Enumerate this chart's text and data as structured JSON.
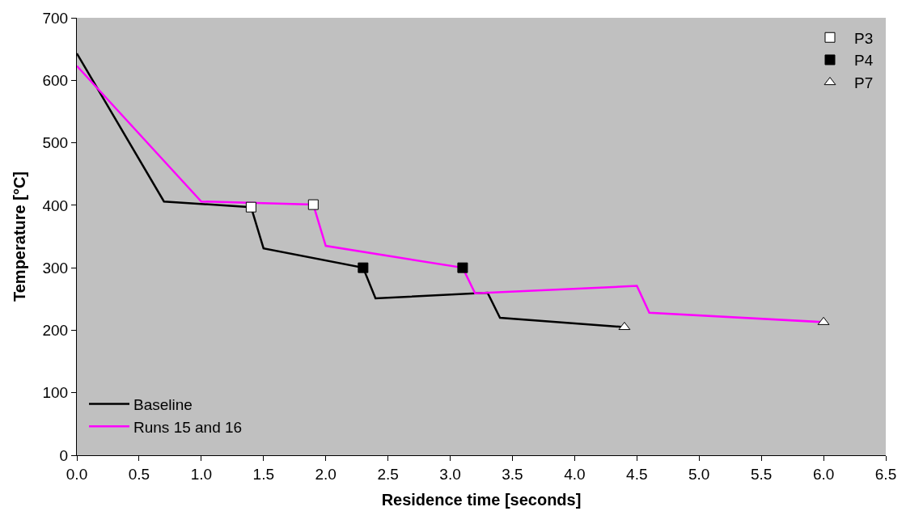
{
  "chart_data": {
    "type": "line",
    "xlabel": "Residence time [seconds]",
    "ylabel": "Temperature [°C]",
    "xlim": [
      0,
      6.5
    ],
    "xticks": [
      {
        "value": 0,
        "label": "0.0"
      },
      {
        "value": 0.5,
        "label": "0.5"
      },
      {
        "value": 1,
        "label": "1.0"
      },
      {
        "value": 1.5,
        "label": "1.5"
      },
      {
        "value": 2,
        "label": "2.0"
      },
      {
        "value": 2.5,
        "label": "2.5"
      },
      {
        "value": 3,
        "label": "3.0"
      },
      {
        "value": 3.5,
        "label": "3.5"
      },
      {
        "value": 4,
        "label": "4.0"
      },
      {
        "value": 4.5,
        "label": "4.5"
      },
      {
        "value": 5,
        "label": "5.0"
      },
      {
        "value": 5.5,
        "label": "5.5"
      },
      {
        "value": 6,
        "label": "6.0"
      },
      {
        "value": 6.5,
        "label": "6.5"
      }
    ],
    "ylim": [
      0,
      700
    ],
    "yticks": [
      0,
      100,
      200,
      300,
      400,
      500,
      600,
      700
    ],
    "grid": false,
    "legend": "top right",
    "marker": "none",
    "line_style": "solid",
    "series": [
      {
        "name": "Baseline",
        "color": "#000000",
        "x": [
          0,
          0.7,
          1.4,
          1.5,
          2.3,
          2.4,
          3.3,
          3.4,
          4.4
        ],
        "values": [
          643,
          406,
          397,
          331,
          300,
          251,
          260,
          220,
          205
        ]
      },
      {
        "name": "Runs 15 and 16",
        "color": "#ff00ff",
        "x": [
          0,
          1.0,
          1.9,
          2.0,
          3.1,
          3.2,
          4.5,
          4.6,
          6.0
        ],
        "values": [
          623,
          406,
          401,
          335,
          300,
          259,
          271,
          228,
          213
        ]
      },
      {
        "name": "P3",
        "type": "scatter",
        "marker": "square",
        "color": "#ffffff",
        "x": [
          1.4,
          1.9
        ],
        "values": [
          397,
          401
        ]
      },
      {
        "name": "P4",
        "type": "scatter",
        "marker": "square",
        "color": "#000000",
        "x": [
          2.3,
          3.1
        ],
        "values": [
          300,
          300
        ]
      },
      {
        "name": "P7",
        "type": "scatter",
        "marker": "triangle",
        "color": "#ffffff",
        "x": [
          4.4,
          6.0
        ],
        "values": [
          205,
          213
        ]
      }
    ]
  }
}
